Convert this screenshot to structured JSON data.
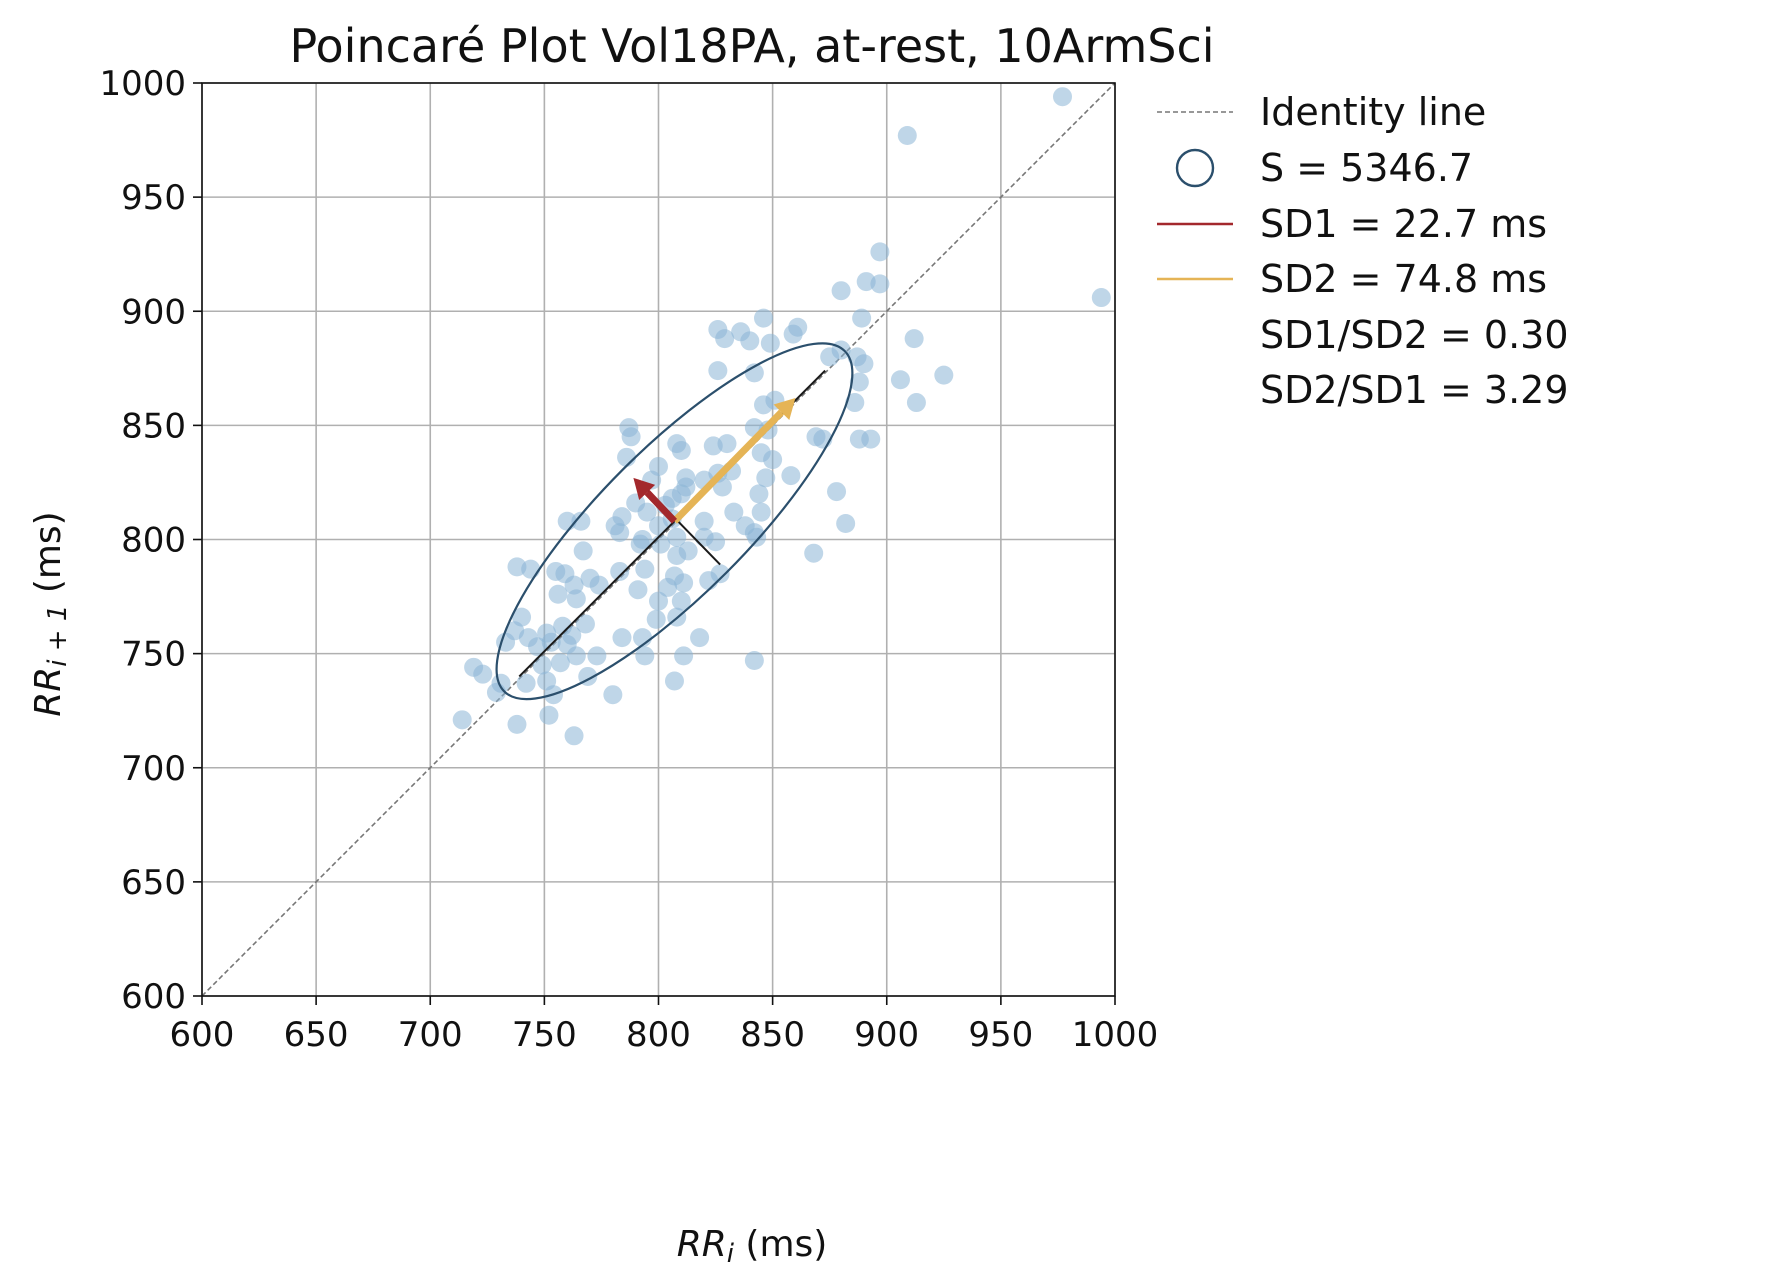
{
  "chart_data": {
    "type": "scatter",
    "title": "Poincaré Plot Vol18PA, at-rest, 10ArmSci",
    "xlabel": {
      "base": "RR",
      "sub": "i",
      "unit": " (ms)"
    },
    "ylabel": {
      "base": "RR",
      "sub": "i + 1",
      "unit": " (ms)"
    },
    "xlim": [
      600,
      1000
    ],
    "ylim": [
      600,
      1000
    ],
    "xticks": [
      "600",
      "650",
      "700",
      "750",
      "800",
      "850",
      "900",
      "950",
      "1000"
    ],
    "yticks": [
      "600",
      "650",
      "700",
      "750",
      "800",
      "850",
      "900",
      "950",
      "1000"
    ],
    "grid": true,
    "legend_position": "outside-right",
    "colors": {
      "points": "#8ab5d6",
      "ellipse": "#2b4f6c",
      "sd1": "#a3282c",
      "sd2": "#e5b456",
      "identity": "#777777",
      "axes_line": "#1a1a1a"
    },
    "identity_line": {
      "from": [
        600,
        600
      ],
      "to": [
        1000,
        1000
      ]
    },
    "ellipse": {
      "center": [
        807,
        808
      ],
      "sd1": 22.7,
      "sd2": 74.8,
      "angle_deg": 45
    },
    "sd1_arrow": {
      "from": [
        807,
        808
      ],
      "to": [
        789,
        827
      ]
    },
    "sd2_arrow": {
      "from": [
        807,
        808
      ],
      "to": [
        860,
        862
      ]
    },
    "sd1_axis_line": {
      "from": [
        791,
        826
      ],
      "to": [
        827,
        789
      ]
    },
    "sd2_axis_line": {
      "from": [
        739,
        740
      ],
      "to": [
        873,
        874
      ]
    },
    "legend": [
      {
        "kind": "dashed-line",
        "label": "Identity line"
      },
      {
        "kind": "ellipse",
        "label": "S = 5346.7"
      },
      {
        "kind": "sd1-line",
        "label": "SD1 = 22.7 ms"
      },
      {
        "kind": "sd2-line",
        "label": "SD2 = 74.8 ms"
      },
      {
        "kind": "none",
        "label": "SD1/SD2 = 0.30"
      },
      {
        "kind": "none",
        "label": "SD2/SD1 = 3.29"
      }
    ],
    "points": [
      [
        977,
        994
      ],
      [
        909,
        977
      ],
      [
        994,
        906
      ],
      [
        897,
        926
      ],
      [
        891,
        913
      ],
      [
        897,
        912
      ],
      [
        880,
        909
      ],
      [
        826,
        892
      ],
      [
        829,
        888
      ],
      [
        836,
        891
      ],
      [
        840,
        887
      ],
      [
        846,
        897
      ],
      [
        849,
        886
      ],
      [
        859,
        890
      ],
      [
        861,
        893
      ],
      [
        889,
        897
      ],
      [
        912,
        888
      ],
      [
        875,
        880
      ],
      [
        880,
        883
      ],
      [
        887,
        880
      ],
      [
        890,
        877
      ],
      [
        826,
        874
      ],
      [
        842,
        873
      ],
      [
        888,
        869
      ],
      [
        906,
        870
      ],
      [
        925,
        872
      ],
      [
        913,
        860
      ],
      [
        886,
        860
      ],
      [
        851,
        861
      ],
      [
        846,
        859
      ],
      [
        787,
        849
      ],
      [
        788,
        845
      ],
      [
        808,
        842
      ],
      [
        810,
        839
      ],
      [
        824,
        841
      ],
      [
        830,
        842
      ],
      [
        842,
        849
      ],
      [
        848,
        848
      ],
      [
        869,
        845
      ],
      [
        872,
        844
      ],
      [
        888,
        844
      ],
      [
        893,
        844
      ],
      [
        786,
        836
      ],
      [
        800,
        832
      ],
      [
        812,
        827
      ],
      [
        820,
        826
      ],
      [
        845,
        838
      ],
      [
        850,
        835
      ],
      [
        826,
        829
      ],
      [
        832,
        830
      ],
      [
        847,
        827
      ],
      [
        858,
        828
      ],
      [
        797,
        826
      ],
      [
        812,
        823
      ],
      [
        828,
        823
      ],
      [
        810,
        820
      ],
      [
        806,
        818
      ],
      [
        878,
        821
      ],
      [
        844,
        820
      ],
      [
        790,
        816
      ],
      [
        795,
        812
      ],
      [
        803,
        815
      ],
      [
        833,
        812
      ],
      [
        845,
        812
      ],
      [
        820,
        808
      ],
      [
        784,
        810
      ],
      [
        760,
        808
      ],
      [
        766,
        808
      ],
      [
        781,
        806
      ],
      [
        806,
        809
      ],
      [
        882,
        807
      ],
      [
        800,
        806
      ],
      [
        838,
        806
      ],
      [
        783,
        803
      ],
      [
        793,
        800
      ],
      [
        820,
        801
      ],
      [
        808,
        801
      ],
      [
        843,
        801
      ],
      [
        842,
        803
      ],
      [
        825,
        799
      ],
      [
        767,
        795
      ],
      [
        801,
        798
      ],
      [
        808,
        793
      ],
      [
        813,
        795
      ],
      [
        868,
        794
      ],
      [
        792,
        798
      ],
      [
        738,
        788
      ],
      [
        744,
        787
      ],
      [
        755,
        786
      ],
      [
        759,
        785
      ],
      [
        763,
        780
      ],
      [
        770,
        783
      ],
      [
        783,
        786
      ],
      [
        794,
        787
      ],
      [
        807,
        784
      ],
      [
        811,
        781
      ],
      [
        822,
        782
      ],
      [
        827,
        785
      ],
      [
        756,
        776
      ],
      [
        774,
        780
      ],
      [
        791,
        778
      ],
      [
        800,
        773
      ],
      [
        804,
        779
      ],
      [
        810,
        773
      ],
      [
        764,
        774
      ],
      [
        740,
        766
      ],
      [
        751,
        759
      ],
      [
        758,
        762
      ],
      [
        762,
        758
      ],
      [
        768,
        763
      ],
      [
        799,
        765
      ],
      [
        808,
        766
      ],
      [
        818,
        757
      ],
      [
        793,
        757
      ],
      [
        784,
        757
      ],
      [
        737,
        760
      ],
      [
        743,
        757
      ],
      [
        747,
        753
      ],
      [
        753,
        755
      ],
      [
        760,
        754
      ],
      [
        764,
        749
      ],
      [
        773,
        749
      ],
      [
        794,
        749
      ],
      [
        811,
        749
      ],
      [
        842,
        747
      ],
      [
        733,
        755
      ],
      [
        749,
        745
      ],
      [
        757,
        746
      ],
      [
        729,
        733
      ],
      [
        742,
        737
      ],
      [
        751,
        738
      ],
      [
        754,
        732
      ],
      [
        769,
        740
      ],
      [
        780,
        732
      ],
      [
        807,
        738
      ],
      [
        719,
        744
      ],
      [
        723,
        741
      ],
      [
        731,
        737
      ],
      [
        714,
        721
      ],
      [
        738,
        719
      ],
      [
        752,
        723
      ],
      [
        763,
        714
      ]
    ]
  }
}
